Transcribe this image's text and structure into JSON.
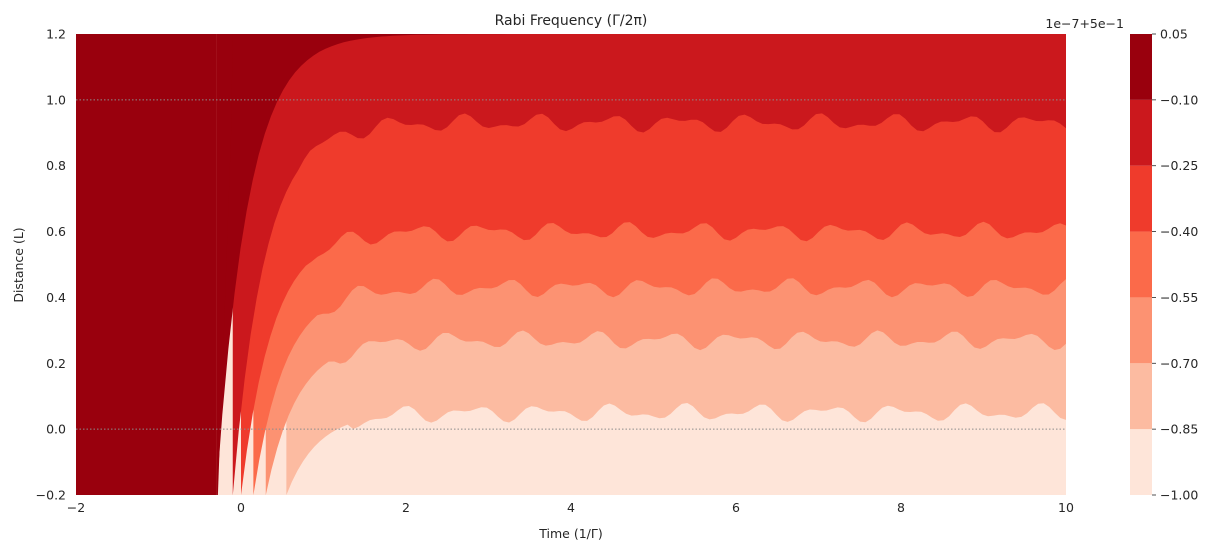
{
  "chart_data": {
    "type": "heatmap",
    "title": "Rabi Frequency (Γ/2π)",
    "xlabel": "Time (1/Γ)",
    "ylabel": "Distance (L)",
    "xlim": [
      -2,
      10
    ],
    "ylim": [
      -0.2,
      1.2
    ],
    "x_ticks": [
      "−2",
      "0",
      "2",
      "4",
      "6",
      "8",
      "10"
    ],
    "x_tick_values": [
      -2,
      0,
      2,
      4,
      6,
      8,
      10
    ],
    "y_ticks": [
      "−0.2",
      "0.0",
      "0.2",
      "0.4",
      "0.6",
      "0.8",
      "1.0",
      "1.2"
    ],
    "y_tick_values": [
      -0.2,
      0.0,
      0.2,
      0.4,
      0.6,
      0.8,
      1.0,
      1.2
    ],
    "reference_lines_y": [
      0.0,
      1.0
    ],
    "colorbar": {
      "offset_text": "1e−7+5e−1",
      "tick_labels": [
        "0.05",
        "−0.10",
        "−0.25",
        "−0.40",
        "−0.55",
        "−0.70",
        "−0.85",
        "−1.00"
      ],
      "levels": [
        -1.0,
        -0.85,
        -0.7,
        -0.55,
        -0.4,
        -0.25,
        -0.1,
        0.05
      ],
      "colors": [
        "#fee5d9",
        "#fcbba1",
        "#fc9272",
        "#fb6a4a",
        "#ef3b2c",
        "#cb181d",
        "#99000d"
      ]
    },
    "contour_bands": [
      {
        "level_index": 0,
        "y_upper_plateau": 0.05,
        "onset_x": 0.55
      },
      {
        "level_index": 1,
        "y_upper_plateau": 0.27,
        "onset_x": 0.3
      },
      {
        "level_index": 2,
        "y_upper_plateau": 0.43,
        "onset_x": 0.15
      },
      {
        "level_index": 3,
        "y_upper_plateau": 0.6,
        "onset_x": 0.0
      },
      {
        "level_index": 4,
        "y_upper_plateau": 0.93,
        "onset_x": -0.1
      },
      {
        "level_index": 5,
        "y_upper_plateau": 1.2,
        "onset_x": -0.3
      }
    ],
    "grid": false,
    "legend": "colorbar-right"
  }
}
